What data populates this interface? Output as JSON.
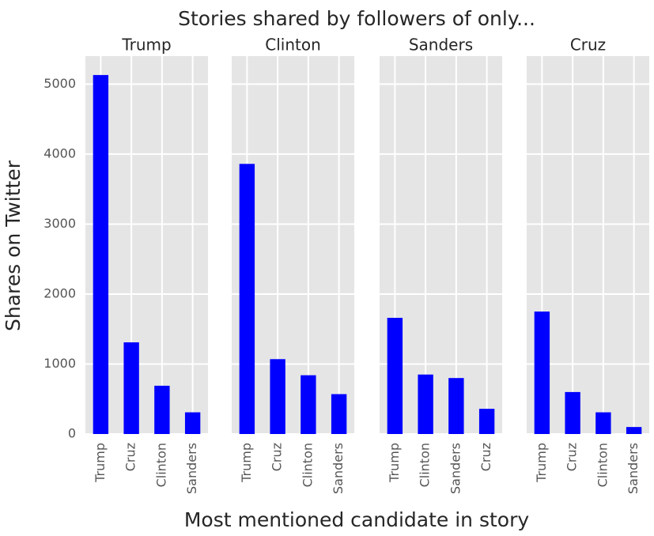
{
  "colors": {
    "bar": "#0000ff",
    "panel_background": "#e5e5e5",
    "grid": "#ffffff",
    "text": "#262626",
    "tick_text": "#555555"
  },
  "chart_data": {
    "type": "bar",
    "title": "Stories shared by followers of only...",
    "xlabel": "Most mentioned candidate in story",
    "ylabel": "Shares on Twitter",
    "ylim": [
      0,
      5400
    ],
    "yticks": [
      0,
      1000,
      2000,
      3000,
      4000,
      5000
    ],
    "grid": true,
    "shared_y": true,
    "panels": [
      {
        "title": "Trump",
        "categories": [
          "Trump",
          "Cruz",
          "Clinton",
          "Sanders"
        ],
        "values": [
          5130,
          1310,
          690,
          310
        ]
      },
      {
        "title": "Clinton",
        "categories": [
          "Trump",
          "Cruz",
          "Clinton",
          "Sanders"
        ],
        "values": [
          3860,
          1070,
          840,
          570
        ]
      },
      {
        "title": "Sanders",
        "categories": [
          "Trump",
          "Clinton",
          "Sanders",
          "Cruz"
        ],
        "values": [
          1660,
          850,
          800,
          360
        ]
      },
      {
        "title": "Cruz",
        "categories": [
          "Trump",
          "Cruz",
          "Clinton",
          "Sanders"
        ],
        "values": [
          1750,
          600,
          310,
          100
        ]
      }
    ]
  }
}
